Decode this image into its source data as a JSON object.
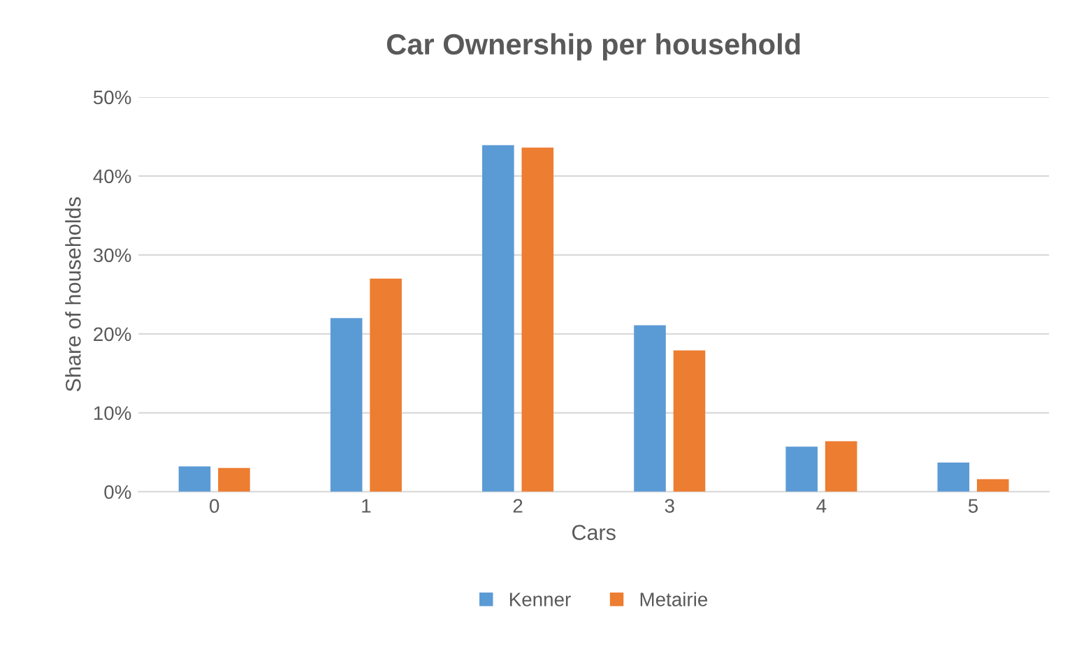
{
  "chart_data": {
    "type": "bar",
    "title": "Car Ownership per household",
    "xlabel": "Cars",
    "ylabel": "Share of households",
    "categories": [
      "0",
      "1",
      "2",
      "3",
      "4",
      "5"
    ],
    "series": [
      {
        "name": "Kenner",
        "color": "#5b9bd5",
        "values": [
          3.2,
          22.0,
          43.9,
          21.1,
          5.7,
          3.7
        ]
      },
      {
        "name": "Metairie",
        "color": "#ed7d31",
        "values": [
          3.0,
          27.0,
          43.6,
          17.9,
          6.4,
          1.6
        ]
      }
    ],
    "ylim": [
      0,
      50
    ],
    "yticks": [
      {
        "value": 0,
        "label": "0%"
      },
      {
        "value": 10,
        "label": "10%"
      },
      {
        "value": 20,
        "label": "20%"
      },
      {
        "value": 30,
        "label": "30%"
      },
      {
        "value": 40,
        "label": "40%"
      },
      {
        "value": 50,
        "label": "50%"
      }
    ],
    "grid": "y",
    "legend": "bottom"
  }
}
